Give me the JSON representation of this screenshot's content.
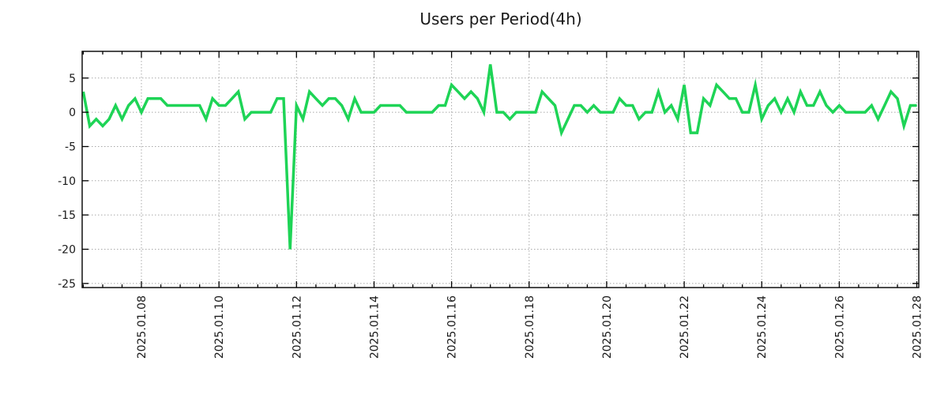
{
  "chart_data": {
    "type": "line",
    "title": "Users per Period(4h)",
    "series_name": "users",
    "start": "2025-01-06 12:00",
    "step_hours": 4,
    "values": [
      3,
      -2,
      -1,
      -2,
      -1,
      1,
      -1,
      1,
      2,
      0,
      2,
      2,
      2,
      1,
      1,
      1,
      1,
      1,
      1,
      -1,
      2,
      1,
      1,
      2,
      3,
      -1,
      0,
      0,
      0,
      0,
      2,
      2,
      -20,
      1,
      -1,
      3,
      2,
      1,
      2,
      2,
      1,
      -1,
      2,
      0,
      0,
      0,
      1,
      1,
      1,
      1,
      0,
      0,
      0,
      0,
      0,
      1,
      1,
      4,
      3,
      2,
      3,
      2,
      0,
      7,
      0,
      0,
      -1,
      0,
      0,
      0,
      0,
      3,
      2,
      1,
      -3,
      -1,
      1,
      1,
      0,
      1,
      0,
      0,
      0,
      2,
      1,
      1,
      -1,
      0,
      0,
      3,
      0,
      1,
      -1,
      4,
      -3,
      -3,
      2,
      1,
      4,
      3,
      2,
      2,
      0,
      0,
      4,
      -1,
      1,
      2,
      0,
      2,
      0,
      3,
      1,
      1,
      3,
      1,
      0,
      1,
      0,
      0,
      0,
      0,
      1,
      -1,
      1,
      3,
      2,
      -2,
      1,
      1
    ],
    "x_ticks": [
      {
        "label": "2025.01.08",
        "t": 36
      },
      {
        "label": "2025.01.10",
        "t": 84
      },
      {
        "label": "2025.01.12",
        "t": 132
      },
      {
        "label": "2025.01.14",
        "t": 180
      },
      {
        "label": "2025.01.16",
        "t": 228
      },
      {
        "label": "2025.01.18",
        "t": 276
      },
      {
        "label": "2025.01.20",
        "t": 324
      },
      {
        "label": "2025.01.22",
        "t": 372
      },
      {
        "label": "2025.01.24",
        "t": 420
      },
      {
        "label": "2025.01.26",
        "t": 468
      },
      {
        "label": "2025.01.28",
        "t": 516
      }
    ],
    "y_ticks": [
      5,
      0,
      -5,
      -10,
      -15,
      -20,
      -25
    ],
    "xlim_hours": [
      -0.7,
      517.2
    ],
    "ylim": [
      -25.6,
      8.9
    ],
    "minor_tick_hours": 12,
    "grid": true,
    "legend": "none",
    "line_color": "#1ed456",
    "grid_color": "#a9a9a9",
    "axis_color": "#000000",
    "text_color": "#1a1a1a",
    "background": "#ffffff"
  }
}
